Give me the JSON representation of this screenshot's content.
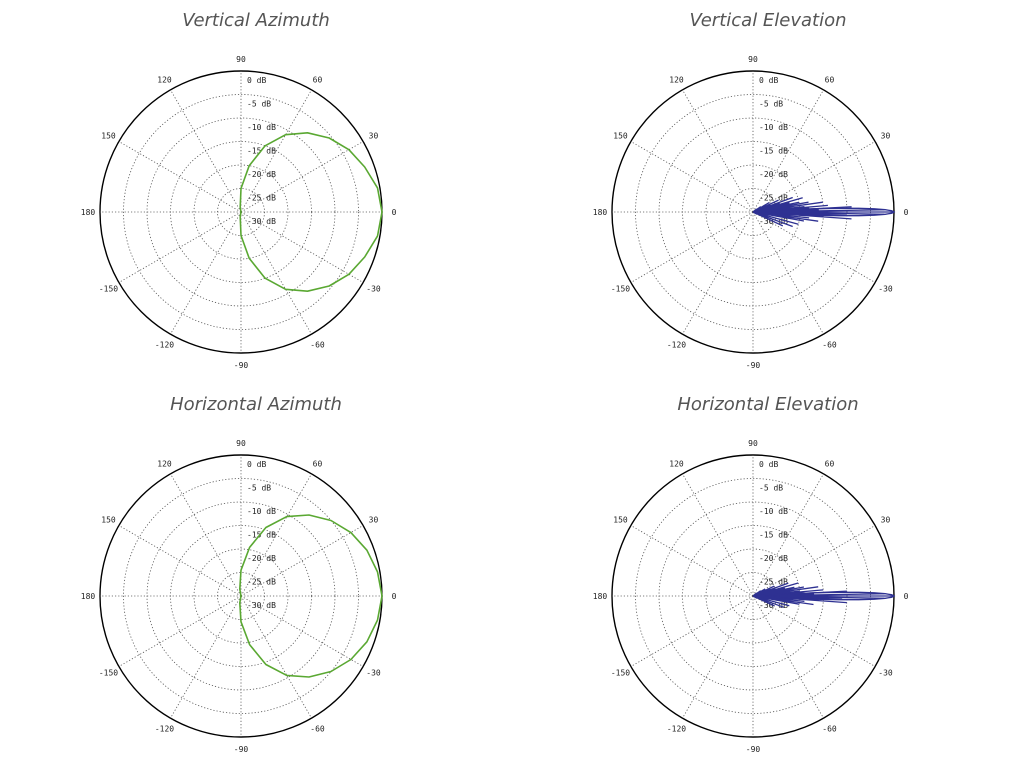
{
  "chart_data": [
    {
      "type": "polar",
      "title": "Vertical Azimuth",
      "angle_ticks": [
        "0",
        "30",
        "60",
        "90",
        "120",
        "150",
        "180",
        "-150",
        "-120",
        "-90",
        "-60",
        "-30"
      ],
      "radial_ticks": [
        "0 dB",
        "-5 dB",
        "-10 dB",
        "-15 dB",
        "-20 dB",
        "-25 dB",
        "-30 dB"
      ],
      "rlim": [
        -30,
        0
      ],
      "grid": true,
      "series_color": "#5aa832",
      "series": [
        {
          "angles": [
            0,
            10,
            20,
            30,
            40,
            50,
            60,
            70,
            80,
            90,
            100,
            110,
            120,
            130,
            140,
            150,
            160,
            170,
            180,
            190,
            200,
            210,
            220,
            230,
            240,
            250,
            260,
            270,
            280,
            290,
            300,
            310,
            320,
            330,
            340,
            350
          ],
          "values": [
            0,
            -0.5,
            -2,
            -3.5,
            -5.5,
            -8,
            -11,
            -15,
            -20,
            -25,
            -29,
            -30,
            -30,
            -30,
            -30,
            -30,
            -30,
            -30,
            -30,
            -30,
            -30,
            -30,
            -30,
            -30,
            -30,
            -30,
            -29,
            -25,
            -20,
            -15,
            -11,
            -8,
            -5.5,
            -3.5,
            -2,
            -0.5
          ]
        }
      ]
    },
    {
      "type": "polar",
      "title": "Vertical Elevation",
      "angle_ticks": [
        "0",
        "30",
        "60",
        "90",
        "120",
        "150",
        "180",
        "-150",
        "-120",
        "-90",
        "-60",
        "-30"
      ],
      "radial_ticks": [
        "0 dB",
        "-5 dB",
        "-10 dB",
        "-15 dB",
        "-20 dB",
        "-25 dB",
        "-30 dB"
      ],
      "rlim": [
        -30,
        0
      ],
      "grid": true,
      "series_color": "#2e3192",
      "series": [
        {
          "angles": [
            -30,
            -25,
            -22,
            -20,
            -18,
            -15,
            -12,
            -10,
            -8,
            -6,
            -4,
            -3,
            -2,
            -1,
            0,
            1,
            2,
            3,
            4,
            5,
            6,
            8,
            10,
            12,
            14,
            16,
            18,
            20,
            22,
            25,
            28,
            30,
            35,
            40
          ],
          "values": [
            -29,
            -23,
            -29,
            -21,
            -28,
            -20,
            -28,
            -19,
            -16,
            -18,
            -9,
            -15,
            -10,
            -2,
            0,
            -2,
            -16,
            -9,
            -18,
            -14,
            -19,
            -15,
            -18,
            -20,
            -22,
            -19,
            -24,
            -21,
            -26,
            -24,
            -27,
            -26,
            -28,
            -29
          ]
        }
      ]
    },
    {
      "type": "polar",
      "title": "Horizontal Azimuth",
      "angle_ticks": [
        "0",
        "30",
        "60",
        "90",
        "120",
        "150",
        "180",
        "-150",
        "-120",
        "-90",
        "-60",
        "-30"
      ],
      "radial_ticks": [
        "0 dB",
        "-5 dB",
        "-10 dB",
        "-15 dB",
        "-20 dB",
        "-25 dB",
        "-30 dB"
      ],
      "rlim": [
        -30,
        0
      ],
      "grid": true,
      "series_color": "#5aa832",
      "series": [
        {
          "angles": [
            0,
            10,
            20,
            30,
            40,
            50,
            60,
            70,
            80,
            90,
            100,
            110,
            120,
            130,
            140,
            150,
            160,
            170,
            180,
            190,
            200,
            210,
            220,
            230,
            240,
            250,
            260,
            270,
            280,
            290,
            300,
            310,
            320,
            330,
            340,
            350
          ],
          "values": [
            0,
            -0.5,
            -1.5,
            -3,
            -5,
            -7.5,
            -10.5,
            -14.5,
            -19.5,
            -24.5,
            -28.5,
            -30,
            -30,
            -30,
            -30,
            -30,
            -30,
            -30,
            -30,
            -30,
            -30,
            -30,
            -30,
            -30,
            -30,
            -30,
            -28.5,
            -24.5,
            -19.5,
            -14.5,
            -10.5,
            -7.5,
            -5,
            -3,
            -1.5,
            -0.5
          ]
        }
      ]
    },
    {
      "type": "polar",
      "title": "Horizontal Elevation",
      "angle_ticks": [
        "0",
        "30",
        "60",
        "90",
        "120",
        "150",
        "180",
        "-150",
        "-120",
        "-90",
        "-60",
        "-30"
      ],
      "radial_ticks": [
        "0 dB",
        "-5 dB",
        "-10 dB",
        "-15 dB",
        "-20 dB",
        "-25 dB",
        "-30 dB"
      ],
      "rlim": [
        -30,
        0
      ],
      "grid": true,
      "series_color": "#2e3192",
      "series": [
        {
          "angles": [
            -30,
            -25,
            -22,
            -20,
            -18,
            -15,
            -12,
            -10,
            -8,
            -6,
            -4,
            -3,
            -2,
            -1,
            0,
            1,
            2,
            3,
            4,
            5,
            6,
            8,
            10,
            12,
            14,
            16,
            18,
            20,
            22,
            25,
            28,
            30,
            35,
            40
          ],
          "values": [
            -29,
            -25,
            -29,
            -23,
            -28,
            -22,
            -28,
            -20,
            -17,
            -19,
            -10,
            -16,
            -11,
            -2,
            0,
            -2,
            -17,
            -10,
            -19,
            -15,
            -20,
            -16,
            -19,
            -21,
            -23,
            -20,
            -25,
            -22,
            -26,
            -25,
            -27,
            -27,
            -28,
            -29
          ]
        }
      ]
    }
  ]
}
